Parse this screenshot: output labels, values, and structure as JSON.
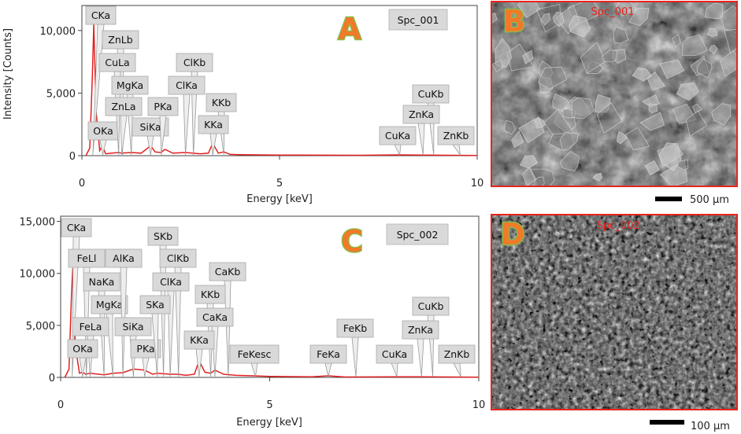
{
  "chart_data": [
    {
      "panel": "A",
      "type": "line",
      "xlabel": "Energy [keV]",
      "ylabel": "Intensity [Counts]",
      "xlim": [
        0,
        10
      ],
      "ylim": [
        0,
        12000
      ],
      "xticks": [
        "0",
        "5",
        "10"
      ],
      "yticks": [
        "0",
        "5,000",
        "10,000"
      ],
      "spectrum_label": "Spc_001",
      "series": [
        {
          "color": "#e02020",
          "x": [
            0.1,
            0.2,
            0.26,
            0.3,
            0.36,
            0.45,
            0.52,
            0.6,
            0.75,
            0.93,
            1.0,
            1.25,
            1.5,
            1.74,
            1.85,
            2.0,
            2.1,
            2.3,
            2.62,
            2.8,
            3.0,
            3.2,
            3.31,
            3.45,
            3.59,
            3.75,
            4.0,
            5.0,
            7.0,
            8.04,
            8.63,
            10.0
          ],
          "y": [
            0,
            600,
            6000,
            10500,
            3500,
            400,
            800,
            150,
            200,
            250,
            200,
            250,
            200,
            800,
            300,
            250,
            500,
            200,
            250,
            200,
            150,
            200,
            1000,
            200,
            300,
            100,
            80,
            50,
            30,
            60,
            50,
            20
          ]
        }
      ],
      "peaks": [
        {
          "label": "CKa",
          "x": 0.277
        },
        {
          "label": "OKa",
          "x": 0.525
        },
        {
          "label": "ZnLb",
          "x": 1.03
        },
        {
          "label": "CuLa",
          "x": 0.93
        },
        {
          "label": "MgKa",
          "x": 1.25
        },
        {
          "label": "ZnLa",
          "x": 1.01
        },
        {
          "label": "SiKa",
          "x": 1.74
        },
        {
          "label": "PKa",
          "x": 2.01
        },
        {
          "label": "ClKb",
          "x": 2.82
        },
        {
          "label": "ClKa",
          "x": 2.62
        },
        {
          "label": "KKb",
          "x": 3.59
        },
        {
          "label": "KKa",
          "x": 3.31
        },
        {
          "label": "CuKb",
          "x": 8.9
        },
        {
          "label": "ZnKa",
          "x": 8.63
        },
        {
          "label": "CuKa",
          "x": 8.04
        },
        {
          "label": "ZnKb",
          "x": 9.57
        }
      ]
    },
    {
      "panel": "C",
      "type": "line",
      "xlabel": "Energy [keV]",
      "ylabel": "",
      "xlim": [
        0,
        10
      ],
      "ylim": [
        0,
        15500
      ],
      "xticks": [
        "0",
        "5",
        "10"
      ],
      "yticks": [
        "0",
        "5,000",
        "10,000",
        "15,000"
      ],
      "spectrum_label": "Spc_002",
      "series": [
        {
          "color": "#e02020",
          "x": [
            0.1,
            0.2,
            0.26,
            0.29,
            0.35,
            0.45,
            0.53,
            0.6,
            0.7,
            1.04,
            1.25,
            1.49,
            1.74,
            2.01,
            2.2,
            2.31,
            2.62,
            2.8,
            3.0,
            3.2,
            3.31,
            3.45,
            3.59,
            3.69,
            3.9,
            4.2,
            4.6,
            5.0,
            6.0,
            6.4,
            6.8,
            8.04,
            8.63,
            10.0
          ],
          "y": [
            0,
            800,
            8000,
            10500,
            3000,
            400,
            500,
            300,
            400,
            250,
            400,
            450,
            800,
            700,
            300,
            400,
            300,
            300,
            200,
            300,
            1600,
            500,
            400,
            700,
            300,
            200,
            150,
            100,
            50,
            150,
            40,
            60,
            50,
            20
          ]
        }
      ],
      "peaks": [
        {
          "label": "CKa",
          "x": 0.277
        },
        {
          "label": "FeLl",
          "x": 0.615
        },
        {
          "label": "NaKa",
          "x": 1.04
        },
        {
          "label": "MgKa",
          "x": 1.25
        },
        {
          "label": "FeLa",
          "x": 0.705
        },
        {
          "label": "OKa",
          "x": 0.525
        },
        {
          "label": "AlKa",
          "x": 1.49
        },
        {
          "label": "SiKa",
          "x": 1.74
        },
        {
          "label": "PKa",
          "x": 2.01
        },
        {
          "label": "SKb",
          "x": 2.46
        },
        {
          "label": "ClKb",
          "x": 2.82
        },
        {
          "label": "ClKa",
          "x": 2.62
        },
        {
          "label": "SKa",
          "x": 2.31
        },
        {
          "label": "CaKb",
          "x": 4.01
        },
        {
          "label": "KKb",
          "x": 3.59
        },
        {
          "label": "CaKa",
          "x": 3.69
        },
        {
          "label": "KKa",
          "x": 3.31
        },
        {
          "label": "FeKesc",
          "x": 4.66
        },
        {
          "label": "FeKb",
          "x": 7.06
        },
        {
          "label": "FeKa",
          "x": 6.4
        },
        {
          "label": "CuKb",
          "x": 8.9
        },
        {
          "label": "ZnKa",
          "x": 8.63
        },
        {
          "label": "CuKa",
          "x": 8.04
        },
        {
          "label": "ZnKb",
          "x": 9.57
        }
      ]
    }
  ],
  "panels": {
    "a_letter": "A",
    "b_letter": "B",
    "c_letter": "C",
    "d_letter": "D"
  },
  "sem": {
    "b_overlay": "Spc_001",
    "b_scale": "500 µm",
    "d_overlay": "Spc_002",
    "d_scale": "100 µm"
  },
  "colors": {
    "spectrum": "#e02020",
    "letter_fill": "#f07a2a",
    "letter_outline": "#7fc24a",
    "sem_border": "#e8241c",
    "label_box": "#d9d9d9"
  }
}
